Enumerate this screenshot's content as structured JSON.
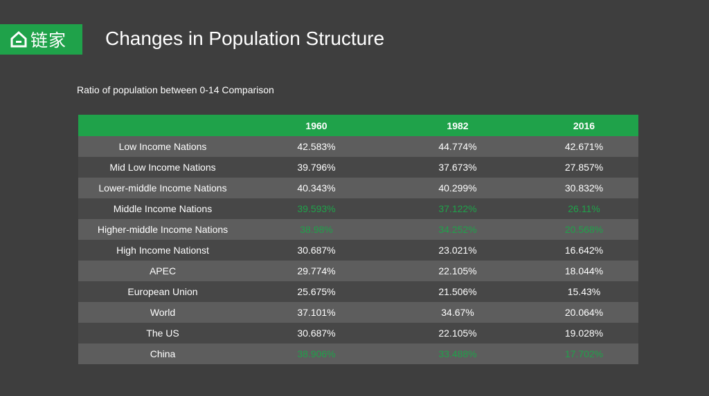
{
  "brand": {
    "logo_text": "链家",
    "icon": "house-icon",
    "color": "#1fa24a"
  },
  "header": {
    "title": "Changes in Population Structure"
  },
  "chart_data": {
    "type": "table",
    "title": "Ratio of population between 0-14 Comparison",
    "columns": [
      "",
      "1960",
      "1982",
      "2016"
    ],
    "rows": [
      {
        "label": "Low Income Nations",
        "values": [
          "42.583%",
          "44.774%",
          "42.671%"
        ],
        "highlight": false
      },
      {
        "label": "Mid Low Income Nations",
        "values": [
          "39.796%",
          "37.673%",
          "27.857%"
        ],
        "highlight": false
      },
      {
        "label": "Lower-middle Income Nations",
        "values": [
          "40.343%",
          "40.299%",
          "30.832%"
        ],
        "highlight": false
      },
      {
        "label": "Middle Income Nations",
        "values": [
          "39.593%",
          "37.122%",
          "26.11%"
        ],
        "highlight": true
      },
      {
        "label": "Higher-middle Income Nations",
        "values": [
          "38.98%",
          "34.252%",
          "20.568%"
        ],
        "highlight": true
      },
      {
        "label": "High Income Nationst",
        "values": [
          "30.687%",
          "23.021%",
          "16.642%"
        ],
        "highlight": false
      },
      {
        "label": "APEC",
        "values": [
          "29.774%",
          "22.105%",
          "18.044%"
        ],
        "highlight": false
      },
      {
        "label": "European Union",
        "values": [
          "25.675%",
          "21.506%",
          "15.43%"
        ],
        "highlight": false
      },
      {
        "label": "World",
        "values": [
          "37.101%",
          "34.67%",
          "20.064%"
        ],
        "highlight": false
      },
      {
        "label": "The US",
        "values": [
          "30.687%",
          "22.105%",
          "19.028%"
        ],
        "highlight": false
      },
      {
        "label": "China",
        "values": [
          "38.906%",
          "33.488%",
          "17.702%"
        ],
        "highlight": true
      }
    ],
    "colors": {
      "header": "#1fa24a",
      "highlight_text": "#1fa24a",
      "row_odd": "#5d5d5d",
      "row_even": "#474747"
    }
  }
}
